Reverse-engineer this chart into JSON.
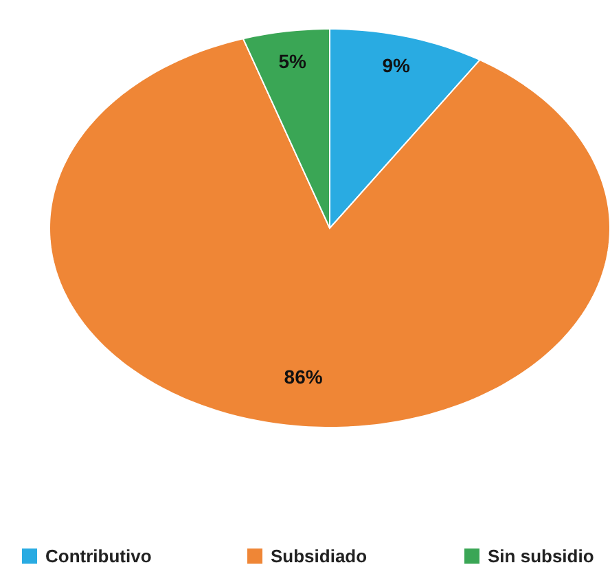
{
  "chart_data": {
    "type": "pie",
    "categories": [
      "Contributivo",
      "Subsidiado",
      "Sin subsidio"
    ],
    "values": [
      9,
      86,
      5
    ],
    "colors": [
      "#29abe2",
      "#ef8636",
      "#3aa655"
    ],
    "value_labels": [
      "9%",
      "86%",
      "5%"
    ],
    "legend": "bottom"
  }
}
